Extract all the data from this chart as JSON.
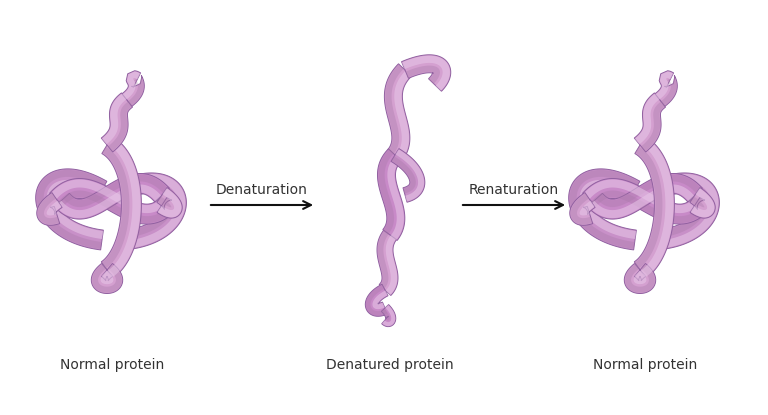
{
  "background_color": "#ffffff",
  "c1": "#d4a0d0",
  "c2": "#c88ac8",
  "c3": "#b870b8",
  "c4": "#e8c8e8",
  "c_edge": "#9060a0",
  "c_shadow": "#a878a8",
  "arrow_color": "#111111",
  "text_color": "#333333",
  "label_normal1": "Normal protein",
  "label_denatured": "Denatured protein",
  "label_normal2": "Normal protein",
  "arrow1_label": "Denaturation",
  "arrow2_label": "Renaturation",
  "label_fontsize": 10,
  "arrow_fontsize": 10,
  "figsize": [
    7.68,
    4.15
  ],
  "dpi": 100
}
